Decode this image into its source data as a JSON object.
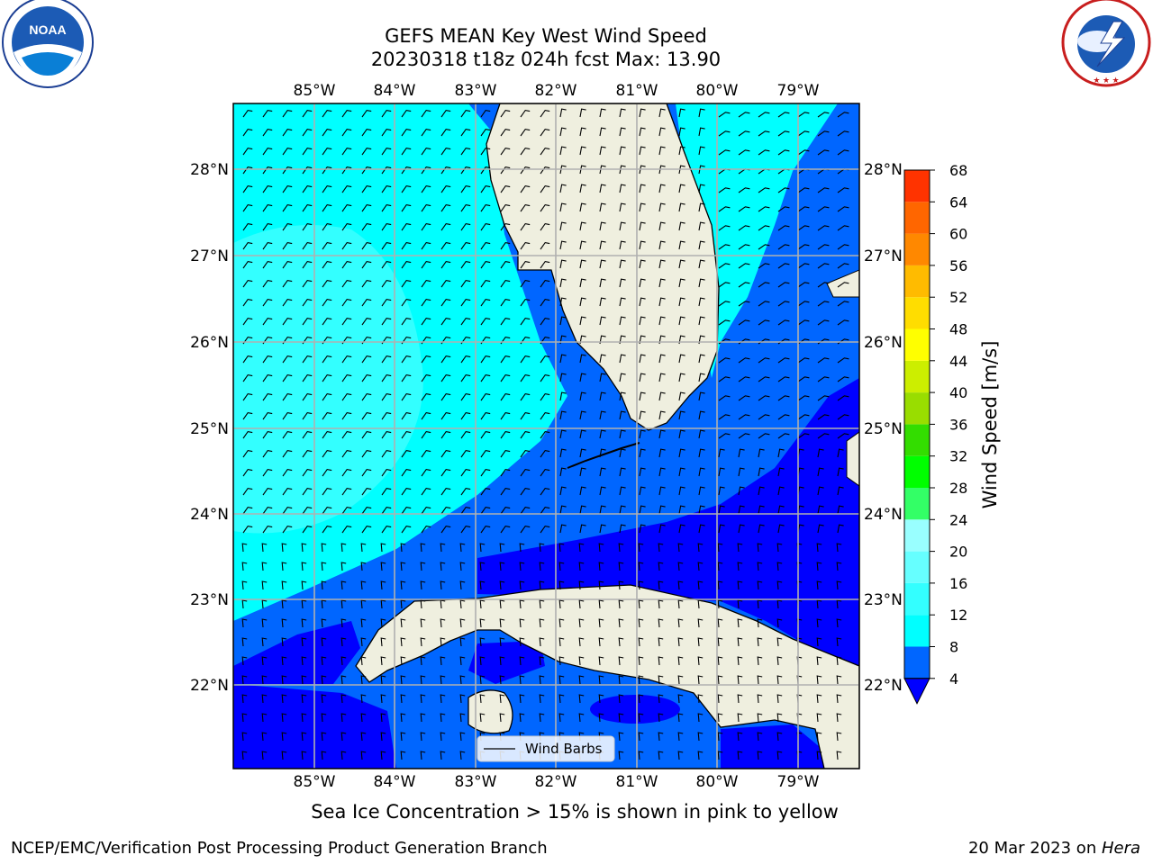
{
  "title": {
    "line1": "GEFS MEAN Key West Wind Speed",
    "line2": "20230318 t18z 024h fcst   Max: 13.90"
  },
  "footer_note": "Sea Ice Concentration > 15% is shown in pink to yellow",
  "credits": {
    "left": "NCEP/EMC/Verification Post Processing Product Generation Branch",
    "right_date": "20 Mar 2023 on ",
    "right_host": "Hera"
  },
  "logos": {
    "left": {
      "name": "noaa-logo",
      "text": "NOAA"
    },
    "right": {
      "name": "nws-logo"
    }
  },
  "map": {
    "lon_labels": [
      "85°W",
      "84°W",
      "83°W",
      "82°W",
      "81°W",
      "80°W",
      "79°W"
    ],
    "lat_labels": [
      "28°N",
      "27°N",
      "26°N",
      "25°N",
      "24°N",
      "23°N",
      "22°N"
    ],
    "legend_label": "Wind Barbs"
  },
  "colorbar": {
    "label": "Wind Speed [m/s]",
    "ticks": [
      "4",
      "8",
      "12",
      "16",
      "20",
      "24",
      "28",
      "32",
      "36",
      "40",
      "44",
      "48",
      "52",
      "56",
      "60",
      "64",
      "68"
    ],
    "colors": [
      "#0066ff",
      "#00ffff",
      "#33ffff",
      "#66ffff",
      "#99ffff",
      "#33ff66",
      "#00ff00",
      "#33dd00",
      "#99dd00",
      "#ccee00",
      "#ffff00",
      "#ffdd00",
      "#ffbb00",
      "#ff8800",
      "#ff6600",
      "#ff3300",
      "#ff0000"
    ],
    "under_color": "#0000ff"
  }
}
